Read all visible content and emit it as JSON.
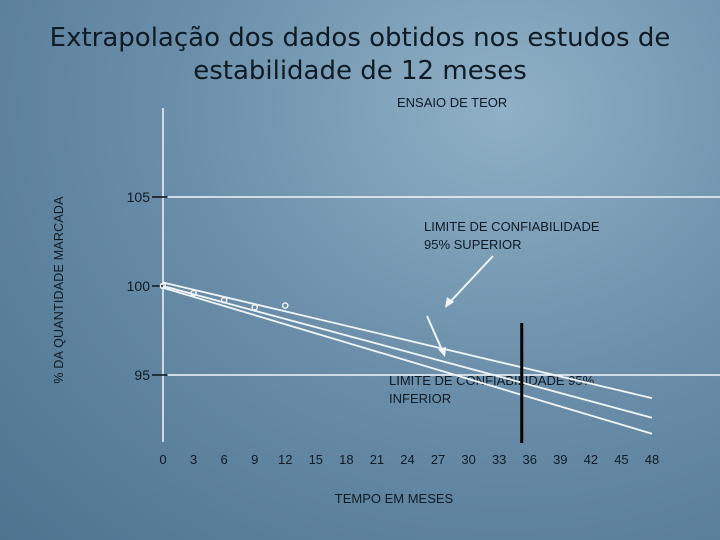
{
  "title_line1": "Extrapolação dos dados obtidos nos estudos de",
  "title_line2": "estabilidade de 12 meses",
  "chart_data": {
    "type": "line",
    "title": "Extrapolação dos dados obtidos nos estudos de estabilidade de 12 meses",
    "subtitle": "ENSAIO DE TEOR",
    "xlabel": "TEMPO EM MESES",
    "ylabel": "% DA QUANTIDADE MARCADA",
    "x_ticks": [
      0,
      3,
      6,
      9,
      12,
      15,
      18,
      21,
      24,
      27,
      30,
      33,
      36,
      39,
      42,
      45,
      48
    ],
    "y_ticks": [
      95,
      100,
      105
    ],
    "xlim": [
      0,
      48
    ],
    "ylim": [
      91,
      110
    ],
    "hlines": [
      105,
      95
    ],
    "vline_x": 36,
    "points": [
      {
        "x": 0,
        "y": 100
      },
      {
        "x": 3,
        "y": 99.6
      },
      {
        "x": 6,
        "y": 99.2
      },
      {
        "x": 9,
        "y": 98.8
      },
      {
        "x": 12,
        "y": 98.9
      }
    ],
    "series": [
      {
        "values": [
          {
            "x": 0,
            "y": 100.2
          },
          {
            "x": 48,
            "y": 93.7
          }
        ]
      },
      {
        "values": [
          {
            "x": 0,
            "y": 100.0
          },
          {
            "x": 48,
            "y": 92.6
          }
        ]
      },
      {
        "values": [
          {
            "x": 0,
            "y": 99.9
          },
          {
            "x": 48,
            "y": 91.7
          }
        ]
      }
    ],
    "annotations": [
      {
        "text": [
          "LIMITE DE CONFIABILIDADE",
          "95%  SUPERIOR"
        ]
      },
      {
        "text": [
          "LIMITE DE CONFIABILIDADE 95%",
          "INFERIOR"
        ]
      }
    ],
    "grid": false,
    "legend": "none"
  }
}
